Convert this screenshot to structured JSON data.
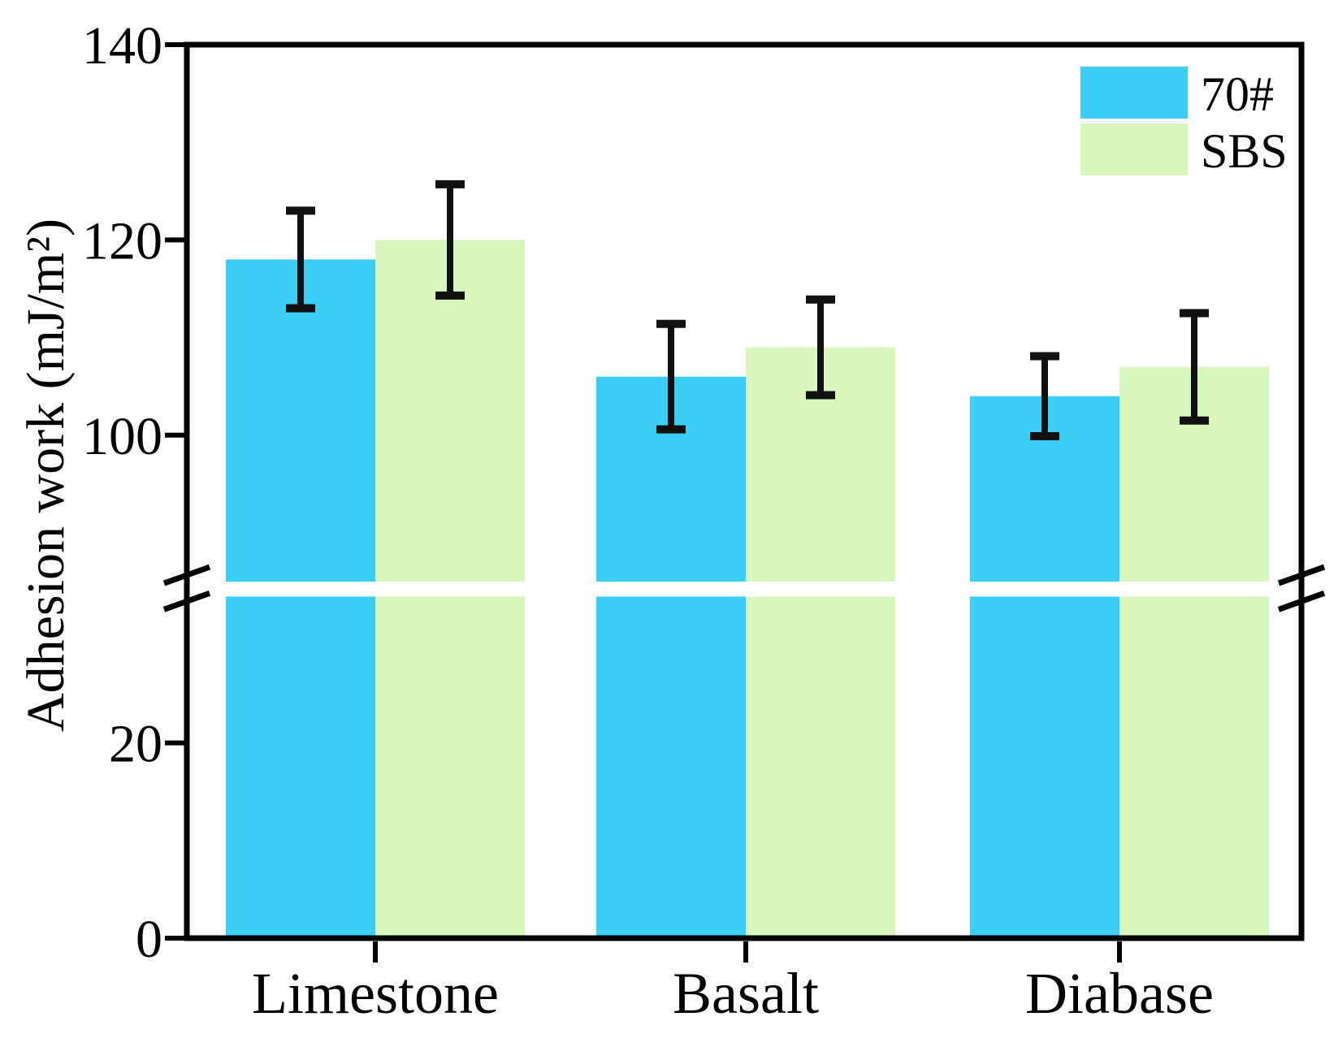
{
  "chart_data": {
    "type": "bar",
    "title": "",
    "categories": [
      "Limestone",
      "Basalt",
      "Diabase"
    ],
    "series": [
      {
        "name": "70#",
        "color": "#3ccff5",
        "values": [
          118,
          106,
          104
        ],
        "errors": [
          5.0,
          5.4,
          4.1
        ]
      },
      {
        "name": "SBS",
        "color": "#d9f7bd",
        "values": [
          120,
          109,
          107
        ],
        "errors": [
          5.7,
          4.9,
          5.5
        ]
      }
    ],
    "xlabel": "",
    "ylabel": "Adhesion work (mJ/m²)",
    "ylim": [
      0,
      140
    ],
    "yticks_upper": [
      140,
      120,
      100
    ],
    "yticks_lower": [
      20,
      0
    ],
    "axis_break": {
      "lower_max": 35,
      "upper_min": 85
    },
    "grid": false,
    "legend_position": "top-right",
    "error_bars": true,
    "axis_color": "#000000",
    "error_bar_color": "#111111",
    "background_color": "#ffffff"
  }
}
